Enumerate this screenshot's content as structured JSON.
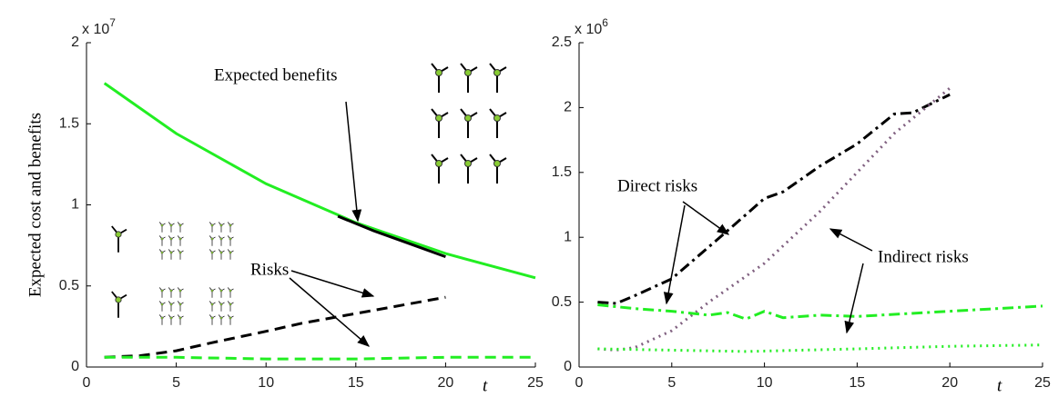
{
  "chart_data": [
    {
      "type": "line",
      "y_label": "Expected cost and benefits",
      "x_label": "t",
      "y_exponent": {
        "base": "x 10",
        "power": "7"
      },
      "xlim": [
        0,
        25
      ],
      "xticks": [
        0,
        5,
        10,
        15,
        20,
        25
      ],
      "ylim": [
        0,
        2
      ],
      "yticks": [
        0,
        0.5,
        1,
        1.5,
        2
      ],
      "annotations": [
        "Expected benefits",
        "Risks"
      ],
      "series": [
        {
          "color": "#22ee22",
          "style": "solid",
          "x": [
            1,
            5,
            10,
            15,
            20,
            25
          ],
          "values": [
            1.75,
            1.44,
            1.13,
            0.89,
            0.7,
            0.55
          ]
        },
        {
          "color": "#000000",
          "style": "solid",
          "x": [
            14,
            16,
            18,
            20
          ],
          "values": [
            0.93,
            0.84,
            0.76,
            0.68
          ]
        },
        {
          "color": "#000000",
          "style": "dashed",
          "x": [
            1,
            3,
            5,
            7,
            10,
            12,
            15,
            17,
            20
          ],
          "values": [
            0.06,
            0.07,
            0.1,
            0.15,
            0.22,
            0.27,
            0.33,
            0.37,
            0.43
          ]
        },
        {
          "color": "#22ee22",
          "style": "dashed",
          "x": [
            1,
            5,
            10,
            15,
            20,
            25
          ],
          "values": [
            0.06,
            0.06,
            0.05,
            0.05,
            0.06,
            0.06
          ]
        }
      ]
    },
    {
      "type": "line",
      "x_label": "t",
      "y_exponent": {
        "base": "x 10",
        "power": "6"
      },
      "xlim": [
        0,
        25
      ],
      "xticks": [
        0,
        5,
        10,
        15,
        20,
        25
      ],
      "ylim": [
        0,
        2.5
      ],
      "yticks": [
        0,
        0.5,
        1,
        1.5,
        2,
        2.5
      ],
      "annotations": [
        "Direct risks",
        "Indirect risks"
      ],
      "series": [
        {
          "color": "#000000",
          "style": "dashdot",
          "x": [
            1,
            2,
            3,
            5,
            8,
            10,
            11,
            13,
            15,
            17,
            18,
            20
          ],
          "values": [
            0.5,
            0.49,
            0.55,
            0.68,
            1.05,
            1.3,
            1.35,
            1.55,
            1.72,
            1.95,
            1.96,
            2.1
          ]
        },
        {
          "color": "#806080",
          "style": "dotted",
          "x": [
            1,
            2,
            3,
            5,
            7,
            10,
            13,
            15,
            17,
            20
          ],
          "values": [
            0.14,
            0.13,
            0.15,
            0.28,
            0.5,
            0.8,
            1.2,
            1.5,
            1.8,
            2.15
          ]
        },
        {
          "color": "#22ee22",
          "style": "dashdot",
          "x": [
            1,
            3,
            5,
            7,
            8,
            9,
            10,
            11,
            13,
            15,
            20,
            25
          ],
          "values": [
            0.48,
            0.45,
            0.43,
            0.4,
            0.42,
            0.37,
            0.43,
            0.38,
            0.4,
            0.39,
            0.43,
            0.47
          ]
        },
        {
          "color": "#22ee22",
          "style": "dotted",
          "x": [
            1,
            5,
            9,
            15,
            20,
            25
          ],
          "values": [
            0.14,
            0.13,
            0.12,
            0.14,
            0.16,
            0.17
          ]
        }
      ]
    }
  ]
}
